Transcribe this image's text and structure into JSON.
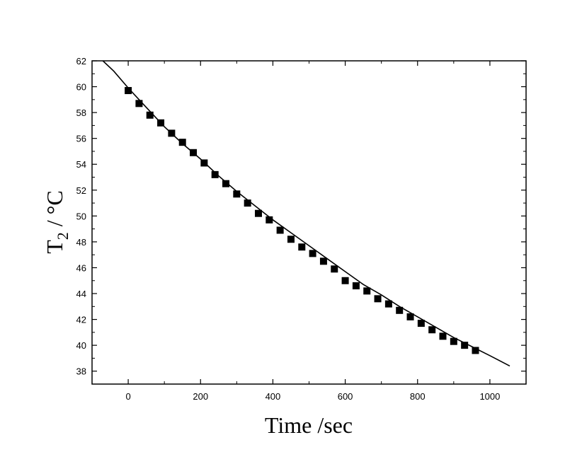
{
  "chart_data": {
    "type": "scatter",
    "xlabel": "Time /sec",
    "ylabel": {
      "main": "T",
      "sub": "2",
      "rest": " / °C"
    },
    "xlim": [
      -100,
      1100
    ],
    "ylim": [
      37,
      62
    ],
    "xticks": [
      0,
      200,
      400,
      600,
      800,
      1000
    ],
    "yticks": [
      38,
      40,
      42,
      44,
      46,
      48,
      50,
      52,
      54,
      56,
      58,
      60,
      62
    ],
    "grid": false,
    "series": [
      {
        "kind": "markers",
        "marker": "square",
        "color": "#000000",
        "x": [
          0,
          30,
          60,
          90,
          120,
          150,
          180,
          210,
          240,
          270,
          300,
          330,
          360,
          390,
          420,
          450,
          480,
          510,
          540,
          570,
          600,
          630,
          660,
          690,
          720,
          750,
          780,
          810,
          840,
          870,
          900,
          930,
          960
        ],
        "y": [
          59.7,
          58.7,
          57.8,
          57.2,
          56.4,
          55.7,
          54.9,
          54.1,
          53.2,
          52.5,
          51.7,
          51.0,
          50.2,
          49.7,
          48.9,
          48.2,
          47.6,
          47.1,
          46.5,
          45.9,
          45.0,
          44.6,
          44.2,
          43.6,
          43.2,
          42.7,
          42.2,
          41.7,
          41.2,
          40.7,
          40.3,
          40.0,
          39.6
        ]
      },
      {
        "kind": "line",
        "color": "#000000",
        "x": [
          -70,
          -40,
          0,
          50,
          100,
          150,
          200,
          250,
          300,
          350,
          400,
          450,
          500,
          550,
          600,
          650,
          700,
          750,
          800,
          850,
          900,
          950,
          1000,
          1055
        ],
        "y": [
          62.0,
          61.2,
          59.9,
          58.4,
          56.9,
          55.6,
          54.4,
          53.1,
          51.9,
          50.8,
          49.7,
          48.7,
          47.7,
          46.7,
          45.7,
          44.7,
          43.9,
          43.0,
          42.2,
          41.4,
          40.6,
          39.9,
          39.2,
          38.4
        ]
      }
    ]
  }
}
